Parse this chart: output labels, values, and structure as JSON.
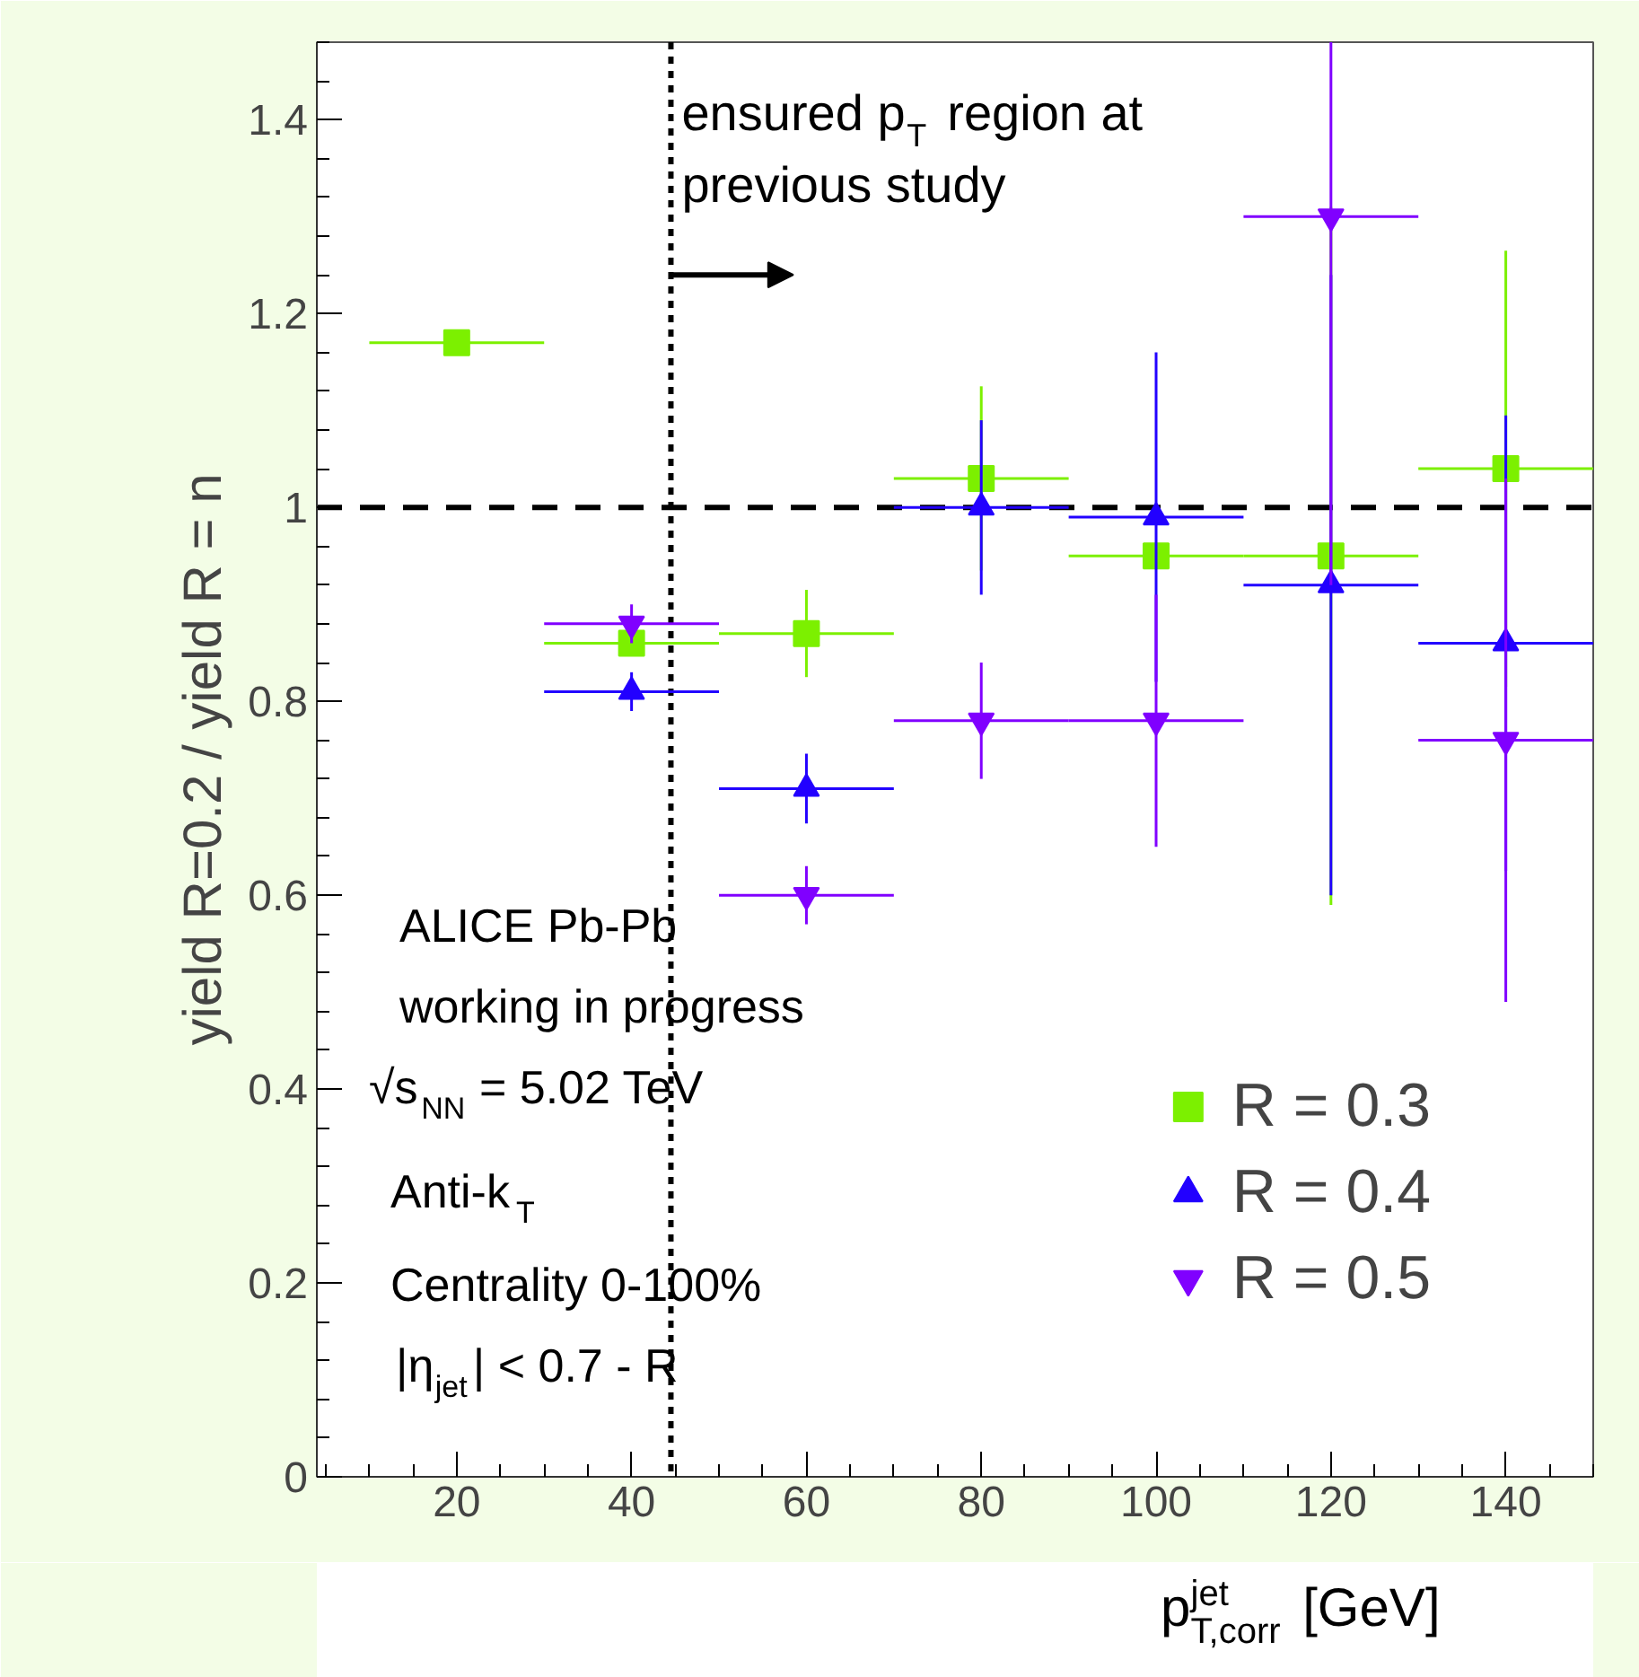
{
  "chart_data": {
    "type": "scatter",
    "xlabel": "p$_{T,corr}$$^{jet}$ [GeV]",
    "ylabel": "yield R=0.2 / yield R = n",
    "x": [
      20,
      40,
      60,
      80,
      100,
      120,
      140
    ],
    "xlim": [
      4,
      150
    ],
    "ylim": [
      0,
      1.48
    ],
    "xticks": [
      20,
      40,
      60,
      80,
      100,
      120,
      140
    ],
    "yticks": [
      0,
      {
        "value": 0.2,
        "label": "0.2"
      },
      {
        "value": 0.4,
        "label": "0.4"
      },
      {
        "value": 0.6,
        "label": "0.6"
      },
      {
        "value": 0.8,
        "label": "0.8"
      },
      1,
      {
        "value": 1.2,
        "label": "1.2"
      },
      {
        "value": 1.4,
        "label": "1.4"
      }
    ],
    "grid": false,
    "legend": "bottom right",
    "series": [
      {
        "name": "R = 0.3",
        "color": "#7cf000",
        "marker": "square",
        "values": [
          1.17,
          0.86,
          0.87,
          1.03,
          0.95,
          0.95,
          1.04
        ],
        "errors": [
          null,
          0.01,
          0.045,
          0.095,
          null,
          0.36,
          0.225
        ],
        "xerrors": [
          10,
          10,
          10,
          10,
          10,
          10,
          10
        ]
      },
      {
        "name": "R = 0.4",
        "color": "#2200ff",
        "marker": "triangle",
        "values": [
          null,
          0.81,
          0.71,
          1.0,
          0.99,
          0.92,
          0.86
        ],
        "errors": [
          null,
          0.02,
          0.036,
          0.09,
          0.17,
          0.32,
          0.235
        ],
        "xerrors": [
          null,
          10,
          10,
          10,
          10,
          10,
          10
        ]
      },
      {
        "name": "R = 0.5",
        "color": "#8000ff",
        "marker": "triangle_down",
        "values": [
          null,
          0.88,
          0.6,
          0.78,
          0.78,
          1.3,
          0.76
        ],
        "errors": [
          null,
          0.02,
          0.03,
          0.06,
          0.13,
          [
            0.92,
            1.48
          ],
          0.27
        ],
        "xerrors": [
          null,
          10,
          10,
          10,
          10,
          10,
          10
        ]
      }
    ],
    "ref_lines": [
      {
        "axis": "y",
        "value": 1,
        "color": "#000000",
        "line_style": "dashed"
      },
      {
        "axis": "x",
        "value": 44.5,
        "color": "#000000",
        "line_style": "dotted"
      }
    ],
    "annotations": [
      {
        "text": "ensured p$_{T}$ region at previous study",
        "x": 44.5,
        "y": 1.4
      },
      "ALICE Pb-Pb",
      "working in progress",
      "√s$_{NN}$ = 5.02 TeV",
      "Anti-k$_{T}$",
      "Centrality 0-100%",
      "|η$_{jet}$| < 0.7 - R"
    ]
  }
}
